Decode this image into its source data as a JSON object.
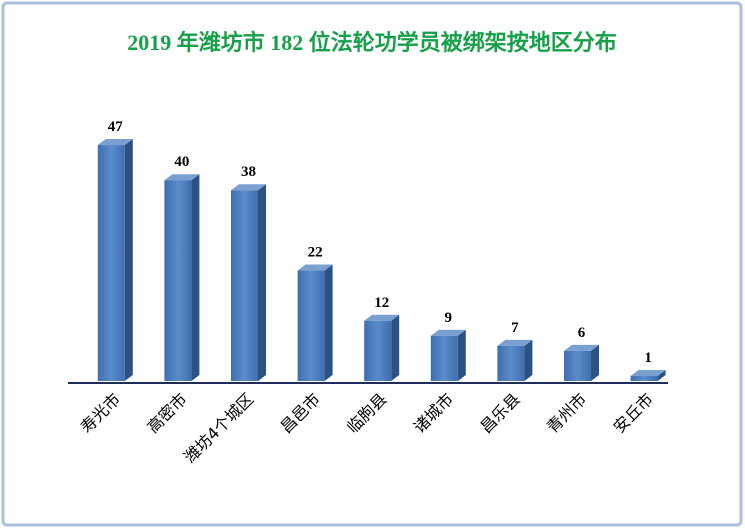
{
  "chart_data": {
    "type": "bar3d",
    "title": "2019 年潍坊市 182 位法轮功学员被绑架按地区分布",
    "categories": [
      "寿光市",
      "高密市",
      "潍坊4个城区",
      "昌邑市",
      "临朐县",
      "诸城市",
      "昌乐县",
      "青州市",
      "安丘市"
    ],
    "values": [
      47,
      40,
      38,
      22,
      12,
      9,
      7,
      6,
      1
    ],
    "color": "#4f81bd"
  }
}
